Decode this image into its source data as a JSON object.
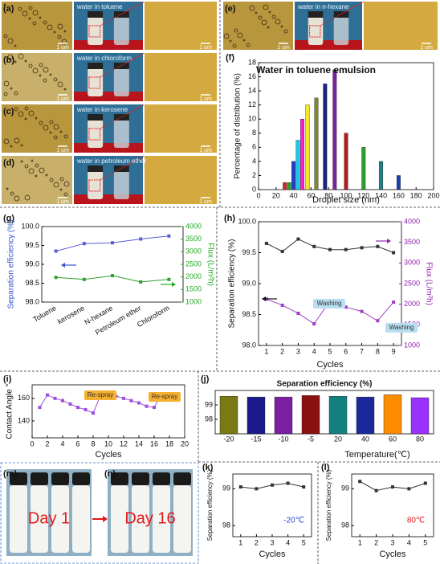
{
  "image_rows": [
    {
      "label": "(a)",
      "caption": "water in toluene",
      "scale_bars": [
        "1 um",
        "1 um"
      ]
    },
    {
      "label": "(b)",
      "caption": "water in chloroform",
      "scale_bars": [
        "1 um",
        "1 um"
      ]
    },
    {
      "label": "(c)",
      "caption": "water in kerosene",
      "scale_bars": [
        "1 um",
        "1 um"
      ]
    },
    {
      "label": "(d)",
      "caption": "water in petroleum ether",
      "scale_bars": [
        "1 um",
        "1 um"
      ]
    },
    {
      "label": "(e)",
      "caption": "water in n-hexane",
      "scale_bars": [
        "1 um",
        "1 um"
      ]
    }
  ],
  "bottom_photos": [
    {
      "label": "(m)",
      "caption": "Day 1"
    },
    {
      "label": "(n)",
      "caption": "Day 16"
    }
  ],
  "chart_data": [
    {
      "type": "bar",
      "panel_label": "(f)",
      "title": "Water in toluene emulsion",
      "x_label": "Droplet size (nm)",
      "y_label": "Percentage of distribution (%)",
      "x": [
        30,
        35,
        40,
        45,
        50,
        56,
        66,
        76,
        87,
        100,
        120,
        140,
        160
      ],
      "values": [
        1,
        1,
        4,
        7,
        10,
        12,
        13,
        15,
        17,
        8,
        6,
        4,
        2
      ],
      "colors": [
        "#d62728",
        "#2ca02c",
        "#1f3fcf",
        "#17c8e8",
        "#ff1fd0",
        "#f5e629",
        "#7f8a2a",
        "#1a237e",
        "#7b1fa2",
        "#b71c1c",
        "#2e9e2e",
        "#1e7f86",
        "#1c3fae"
      ],
      "xlim": [
        0,
        200
      ],
      "xticks": [
        0,
        20,
        40,
        60,
        80,
        100,
        120,
        140,
        160,
        180,
        200
      ],
      "ylim": [
        0,
        18
      ],
      "yticks": [
        0,
        2,
        4,
        6,
        8,
        10,
        12,
        14,
        16,
        18
      ]
    },
    {
      "type": "line",
      "panel_label": "(g)",
      "y_label": "Separation efficiency (%)",
      "y2_label": "Flux (L/m²h)",
      "categories": [
        "Toluene",
        "kerosene",
        "N-hexane",
        "Petroleum ether",
        "Chloroform"
      ],
      "ylim": [
        98.0,
        100.0
      ],
      "yticks": [
        {
          "value": 98,
          "label": "98.0"
        },
        98.5,
        {
          "value": 99,
          "label": "99.0"
        },
        99.5,
        {
          "value": 100,
          "label": "100.0"
        }
      ],
      "y2lim": [
        1000,
        4000
      ],
      "y2ticks": [
        1000,
        1500,
        2000,
        2500,
        3000,
        3500,
        4000
      ],
      "series": [
        {
          "color": "#5b5bd6",
          "values": [
            99.35,
            99.55,
            99.57,
            99.67,
            99.75
          ]
        },
        {
          "color": "#2ca02c",
          "axis": "y2",
          "values": [
            1980,
            1900,
            2050,
            1800,
            1900
          ]
        }
      ]
    },
    {
      "type": "line",
      "panel_label": "(h)",
      "x_label": "Cycles",
      "y_label": "Separation efficiency (%)",
      "y2_label": "Flux (L/m²h)",
      "annotations": [
        "Washing",
        "Washing"
      ],
      "x": [
        1,
        2,
        3,
        4,
        5,
        6,
        7,
        8,
        9
      ],
      "xlim": [
        0.5,
        9.5
      ],
      "xticks": [
        1,
        2,
        3,
        4,
        5,
        6,
        7,
        8,
        9
      ],
      "ylim": [
        98.0,
        100.0
      ],
      "yticks": [
        {
          "value": 98,
          "label": "98.0"
        },
        98.5,
        {
          "value": 99,
          "label": "99.0"
        },
        99.5,
        {
          "value": 100,
          "label": "100.0"
        }
      ],
      "y2lim": [
        1000,
        4000
      ],
      "y2ticks": [
        1000,
        1500,
        2000,
        2500,
        3000,
        3500,
        4000
      ],
      "series": [
        {
          "color": "#333333",
          "values": [
            99.65,
            99.52,
            99.72,
            99.6,
            99.55,
            99.55,
            99.58,
            99.6,
            99.5
          ]
        },
        {
          "color": "#a040c0",
          "axis": "y2",
          "values": [
            2125,
            1975,
            1780,
            1525,
            2080,
            1930,
            1825,
            1600,
            2050
          ]
        }
      ]
    },
    {
      "type": "line",
      "panel_label": "(i)",
      "x_label": "Cycles",
      "y_label": "Contact Angle °",
      "annotations": [
        "Re-spray",
        "Re-spray"
      ],
      "x": [
        1,
        2,
        3,
        4,
        5,
        6,
        7,
        8,
        9,
        10,
        11,
        12,
        13,
        14,
        15,
        16,
        17
      ],
      "xlim": [
        0,
        20
      ],
      "xticks": [
        0,
        2,
        4,
        6,
        8,
        10,
        12,
        14,
        16,
        18,
        20
      ],
      "ylim": [
        125,
        172
      ],
      "yticks": [
        140,
        160
      ],
      "series": [
        {
          "color": "#9c4fe0",
          "values": [
            152,
            163,
            160,
            158,
            155,
            152,
            150,
            147,
            163,
            165,
            162,
            160,
            158,
            156,
            153,
            152,
            164
          ]
        }
      ]
    },
    {
      "type": "bar",
      "panel_label": "(j)",
      "title": "Separation efficiency (%)",
      "x_label": "Temperature(℃)",
      "categories": [
        "-20",
        "-15",
        "-10",
        "-5",
        "20",
        "40",
        "60",
        "80"
      ],
      "values": [
        99.6,
        99.55,
        99.55,
        99.65,
        99.6,
        99.55,
        99.7,
        99.5
      ],
      "colors": [
        "#7a7a14",
        "#1a1a8c",
        "#7b1fa2",
        "#8b1010",
        "#138080",
        "#1a2a9c",
        "#ff8c00",
        "#9b30ff"
      ],
      "ylim": [
        97,
        100
      ],
      "yticks": [
        98,
        99
      ]
    },
    {
      "type": "line",
      "panel_label": "(k)",
      "x_label": "Cycles",
      "y_label": "Separation efficiency (%)",
      "annotations": [
        "-20℃"
      ],
      "x": [
        1,
        2,
        3,
        4,
        5
      ],
      "xlim": [
        0.5,
        5.5
      ],
      "xticks": [
        1,
        2,
        3,
        4,
        5
      ],
      "ylim": [
        97.7,
        99.4
      ],
      "yticks": [
        98,
        99
      ],
      "series": [
        {
          "color": "#333333",
          "values": [
            99.05,
            99.0,
            99.1,
            99.15,
            99.05
          ]
        }
      ]
    },
    {
      "type": "line",
      "panel_label": "(l)",
      "x_label": "Cycles",
      "y_label": "Separation efficiency (%)",
      "annotations": [
        "80℃"
      ],
      "x": [
        1,
        2,
        3,
        4,
        5
      ],
      "xlim": [
        0.5,
        5.5
      ],
      "xticks": [
        1,
        2,
        3,
        4,
        5
      ],
      "ylim": [
        97.7,
        99.4
      ],
      "yticks": [
        98,
        99
      ],
      "series": [
        {
          "color": "#333333",
          "values": [
            99.2,
            98.95,
            99.05,
            99.0,
            99.15
          ]
        }
      ]
    }
  ]
}
